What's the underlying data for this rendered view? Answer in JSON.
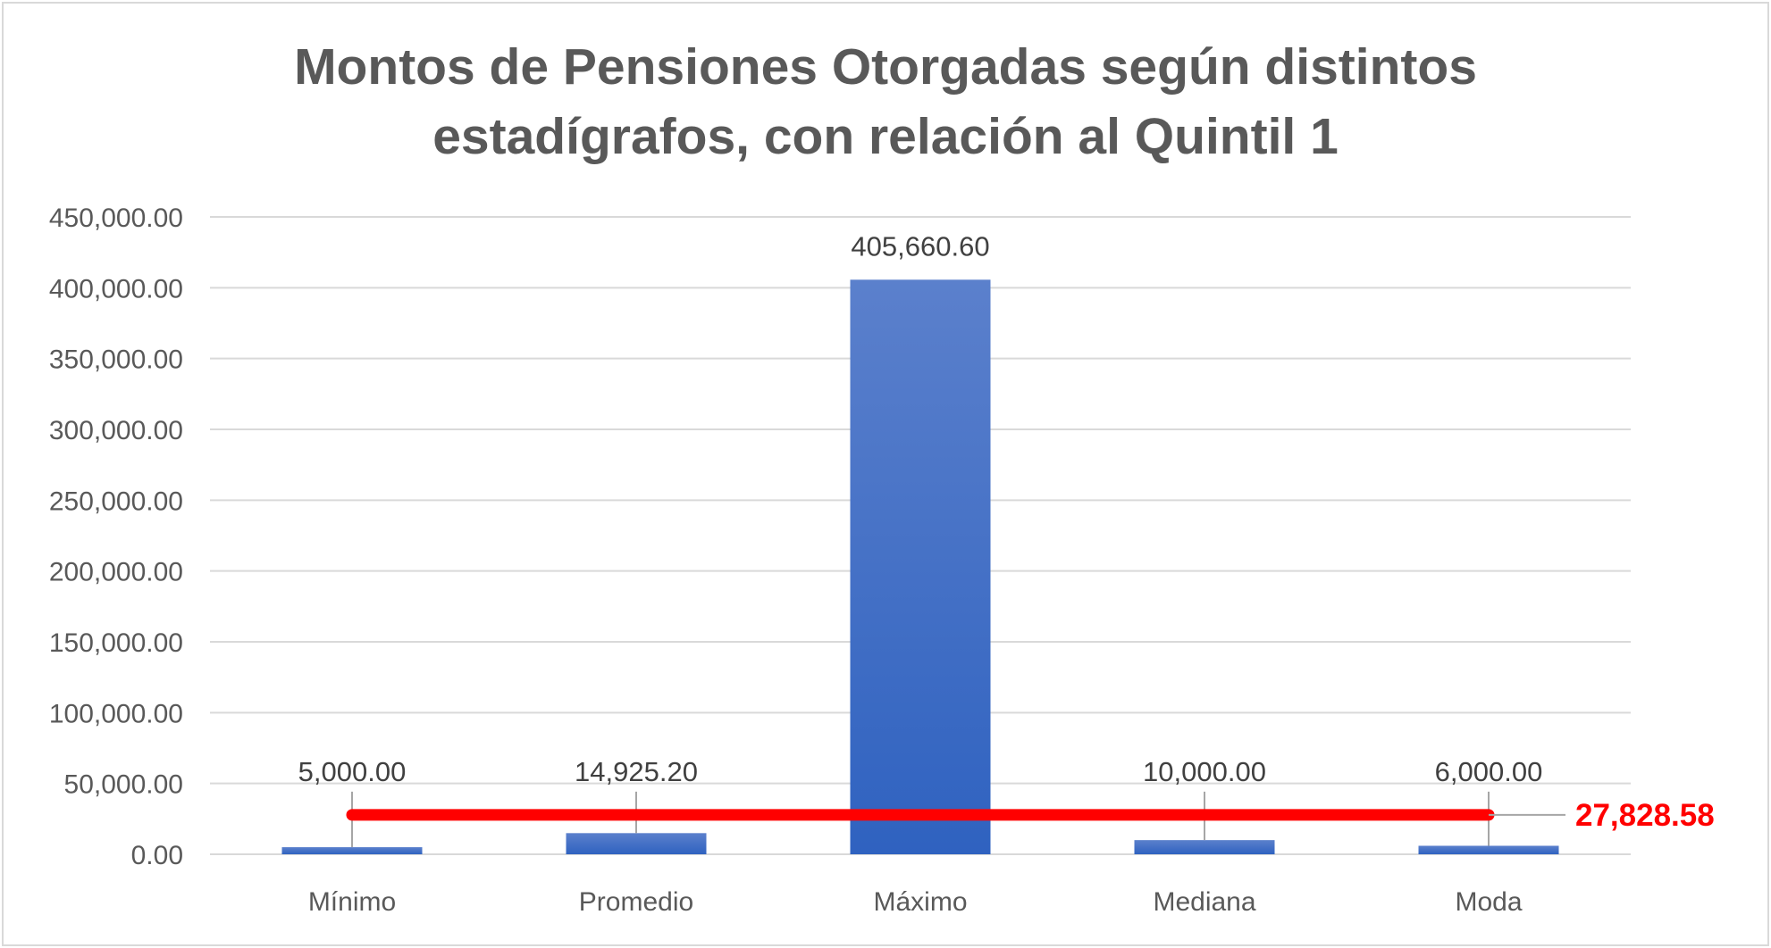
{
  "chart_data": {
    "type": "bar",
    "title_lines": [
      "Montos de Pensiones Otorgadas según distintos",
      "estadígrafos, con relación al Quintil 1"
    ],
    "categories": [
      "Mínimo",
      "Promedio",
      "Máximo",
      "Mediana",
      "Moda"
    ],
    "values": [
      5000.0,
      14925.2,
      405660.6,
      10000.0,
      6000.0
    ],
    "data_labels": [
      "5,000.00",
      "14,925.20",
      "405,660.60",
      "10,000.00",
      "6,000.00"
    ],
    "ylim": [
      0,
      450000
    ],
    "yticks": [
      0,
      50000,
      100000,
      150000,
      200000,
      250000,
      300000,
      350000,
      400000,
      450000
    ],
    "ytick_labels": [
      "0.00",
      "50,000.00",
      "100,000.00",
      "150,000.00",
      "200,000.00",
      "250,000.00",
      "300,000.00",
      "350,000.00",
      "400,000.00",
      "450,000.00"
    ],
    "grid": true,
    "reference_line": {
      "value": 27828.58,
      "label": "27,828.58",
      "color": "#ff0000"
    },
    "colors": {
      "bar_top": "#5b80cc",
      "bar_bottom": "#2f62c0",
      "grid": "#d9d9d9",
      "leader": "#a6a6a6"
    }
  }
}
